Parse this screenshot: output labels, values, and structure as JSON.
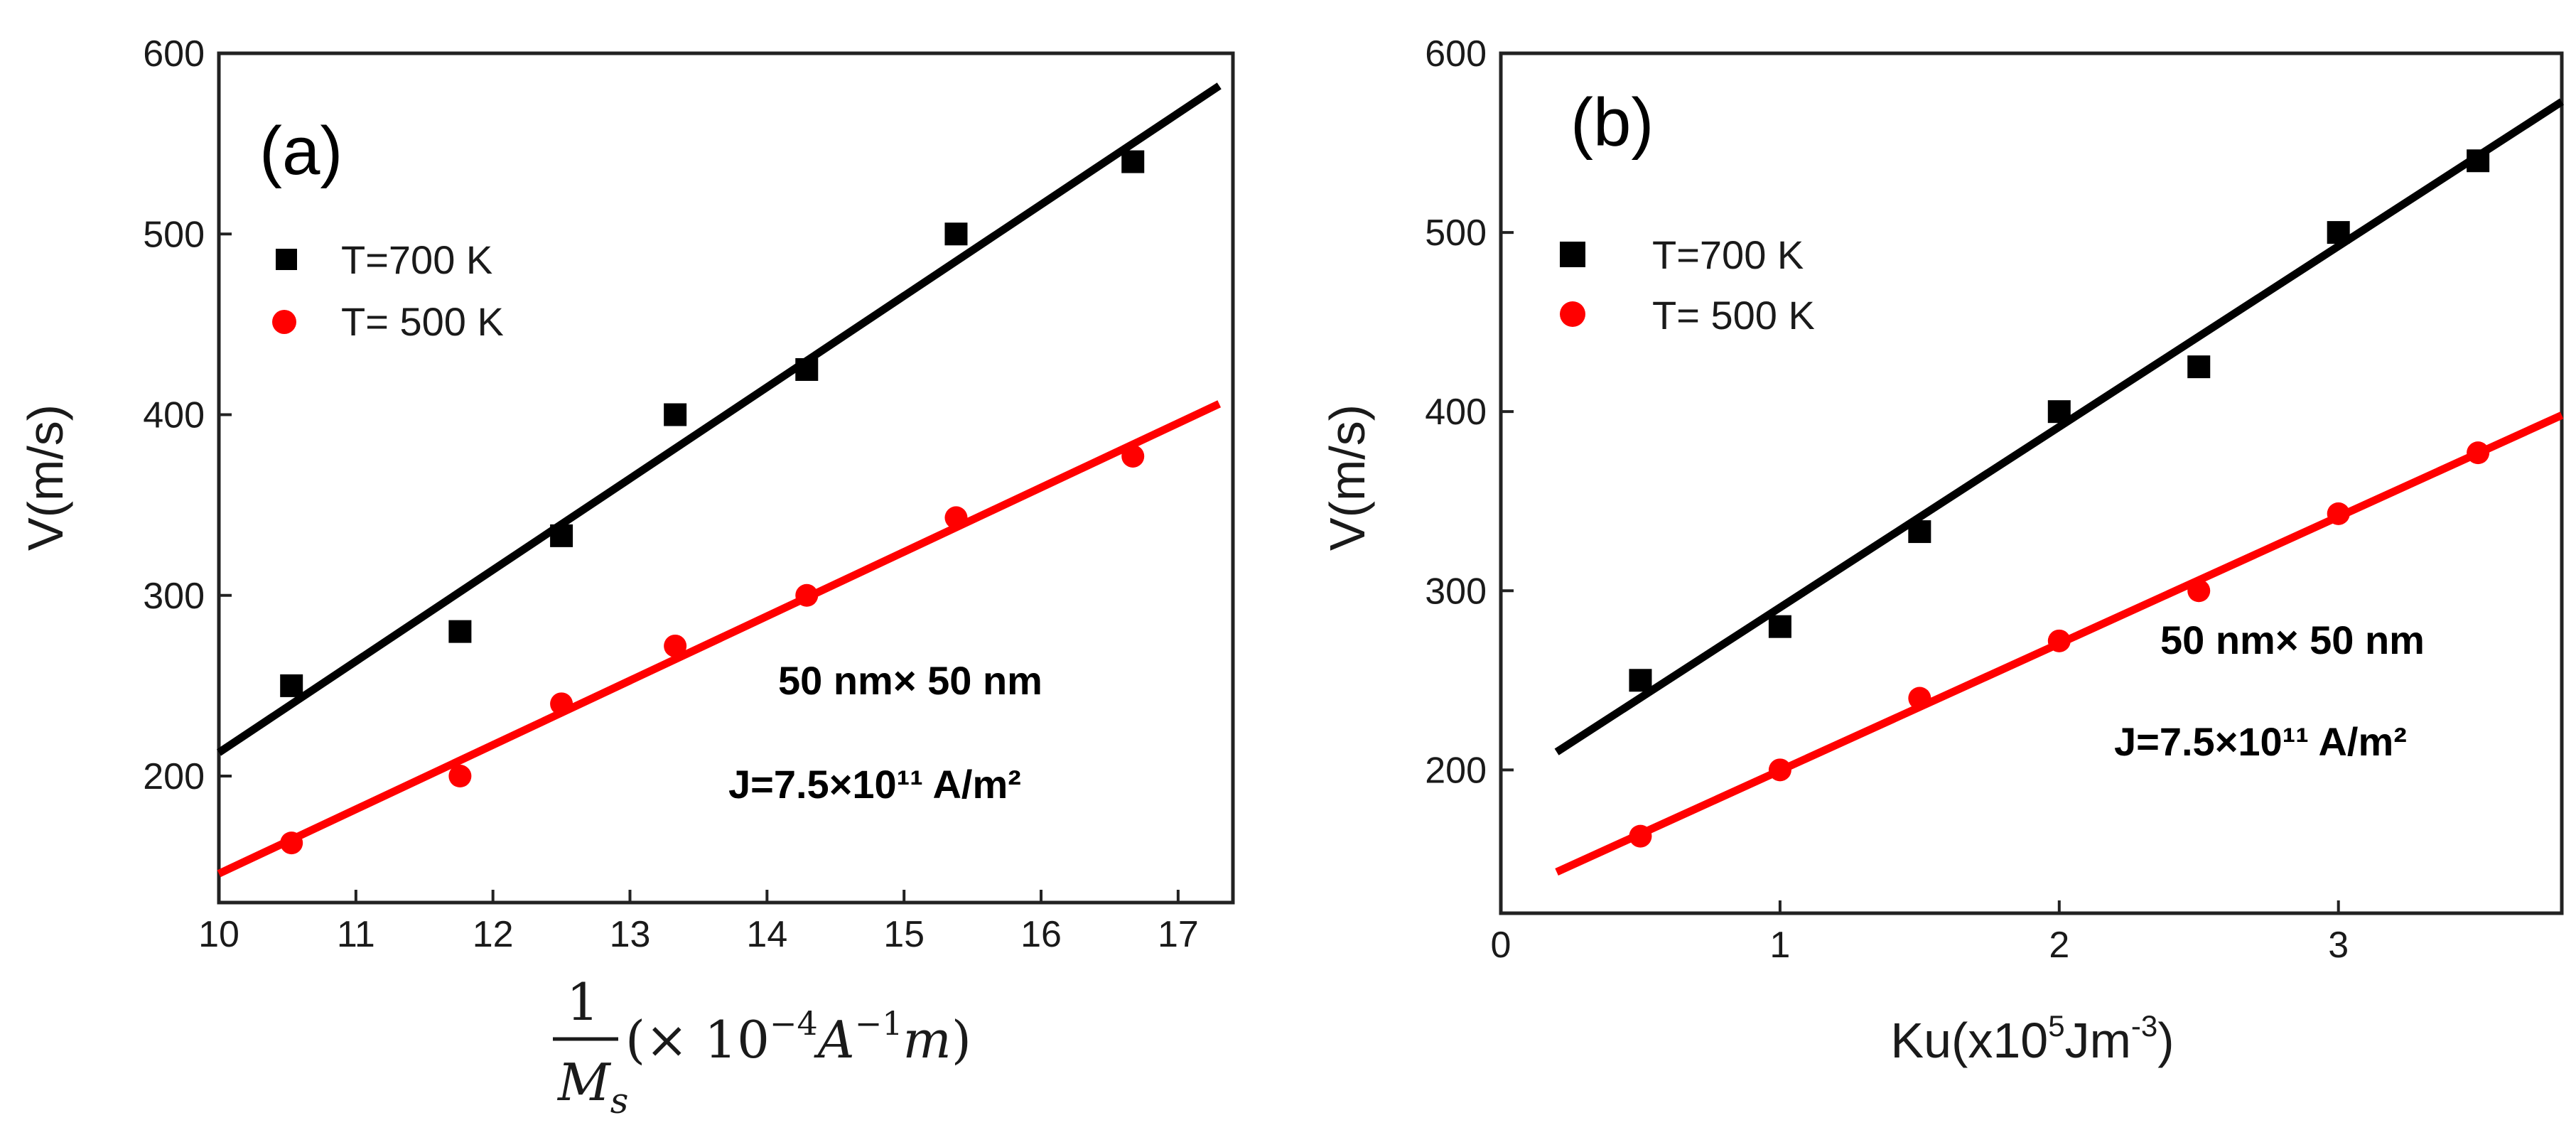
{
  "chart_data": [
    {
      "type": "scatter",
      "panel_label": "(a)",
      "title": "",
      "xlabel": {
        "prefix": "1",
        "den": "M",
        "den_sub": "s",
        "paren_open": "(× 10",
        "exp1": "−4",
        "unitA": "A",
        "exp2": "−1",
        "unitm": "m",
        "paren_close": ")"
      },
      "ylabel": "V(m/s)",
      "xlim": [
        10,
        17.4
      ],
      "ylim": [
        130,
        600
      ],
      "xticks": [
        10,
        11,
        12,
        13,
        14,
        15,
        16,
        17
      ],
      "yticks": [
        200,
        300,
        400,
        500,
        600
      ],
      "legend": {
        "position": "upper-left",
        "entries": [
          "T=700 K",
          "T= 500 K"
        ]
      },
      "annotations": [
        "50 nm× 50 nm",
        "J=7.5×10¹¹ A/m²"
      ],
      "series": [
        {
          "name": "T=700 K",
          "color": "#000000",
          "marker": "square",
          "x": [
            10.53,
            11.76,
            12.5,
            13.33,
            14.29,
            15.38,
            16.67
          ],
          "y": [
            250,
            280,
            333,
            400,
            425,
            500,
            540
          ],
          "fit": {
            "x": [
              10,
              17.3
            ],
            "y": [
              213,
              582
            ]
          }
        },
        {
          "name": "T= 500 K",
          "color": "#ff0000",
          "marker": "circle",
          "x": [
            10.53,
            11.76,
            12.5,
            13.33,
            14.29,
            15.38,
            16.67
          ],
          "y": [
            163,
            200,
            240,
            272,
            300,
            343,
            377
          ],
          "fit": {
            "x": [
              10,
              17.3
            ],
            "y": [
              146,
              406
            ]
          }
        }
      ]
    },
    {
      "type": "scatter",
      "panel_label": "(b)",
      "title": "",
      "xlabel": {
        "base": "Ku(x10",
        "sup1": "5",
        "mid": "Jm",
        "sup2": "-3",
        "end": ")"
      },
      "ylabel": "V(m/s)",
      "xlim": [
        0,
        3.8
      ],
      "ylim": [
        120,
        600
      ],
      "xticks": [
        0,
        1,
        2,
        3
      ],
      "yticks": [
        200,
        300,
        400,
        500,
        600
      ],
      "legend": {
        "position": "upper-left",
        "entries": [
          "T=700 K",
          "T= 500 K"
        ]
      },
      "annotations": [
        "50 nm× 50 nm",
        "J=7.5×10¹¹ A/m²"
      ],
      "series": [
        {
          "name": "T=700 K",
          "color": "#000000",
          "marker": "square",
          "x": [
            0.5,
            1.0,
            1.5,
            2.0,
            2.5,
            3.0,
            3.5
          ],
          "y": [
            250,
            280,
            333,
            400,
            425,
            500,
            540
          ],
          "fit": {
            "x": [
              0.2,
              3.8
            ],
            "y": [
              210,
              573
            ]
          }
        },
        {
          "name": "T= 500 K",
          "color": "#ff0000",
          "marker": "circle",
          "x": [
            0.5,
            1.0,
            1.5,
            2.0,
            2.5,
            3.0,
            3.5
          ],
          "y": [
            163,
            200,
            240,
            272,
            300,
            343,
            377
          ],
          "fit": {
            "x": [
              0.2,
              3.8
            ],
            "y": [
              143,
              398
            ]
          }
        }
      ]
    }
  ]
}
